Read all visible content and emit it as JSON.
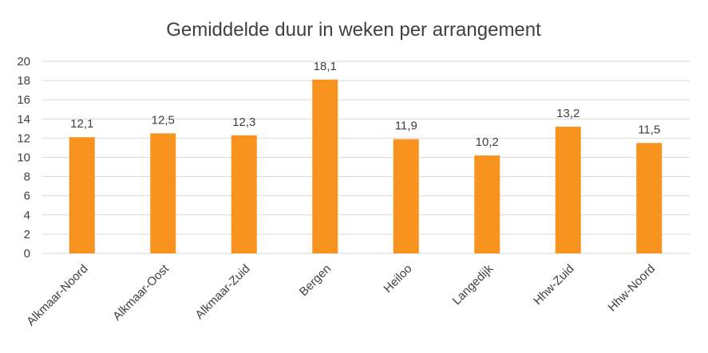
{
  "chart_data": {
    "type": "bar",
    "title": "Gemiddelde duur in weken per arrangement",
    "categories": [
      "Alkmaar-Noord",
      "Alkmaar-Oost",
      "Alkmaar-Zuid",
      "Bergen",
      "Heiloo",
      "Langedijk",
      "Hhw-Zuid",
      "Hhw-Noord"
    ],
    "values": [
      12.1,
      12.5,
      12.3,
      18.1,
      11.9,
      10.2,
      13.2,
      11.5
    ],
    "data_labels": [
      "12,1",
      "12,5",
      "12,3",
      "18,1",
      "11,9",
      "10,2",
      "13,2",
      "11,5"
    ],
    "y_ticks": [
      "0",
      "2",
      "4",
      "6",
      "8",
      "10",
      "12",
      "14",
      "16",
      "18",
      "20"
    ],
    "ylim": [
      0,
      20
    ],
    "grid": true,
    "legend": "none",
    "bar_color": "#f7931e"
  }
}
